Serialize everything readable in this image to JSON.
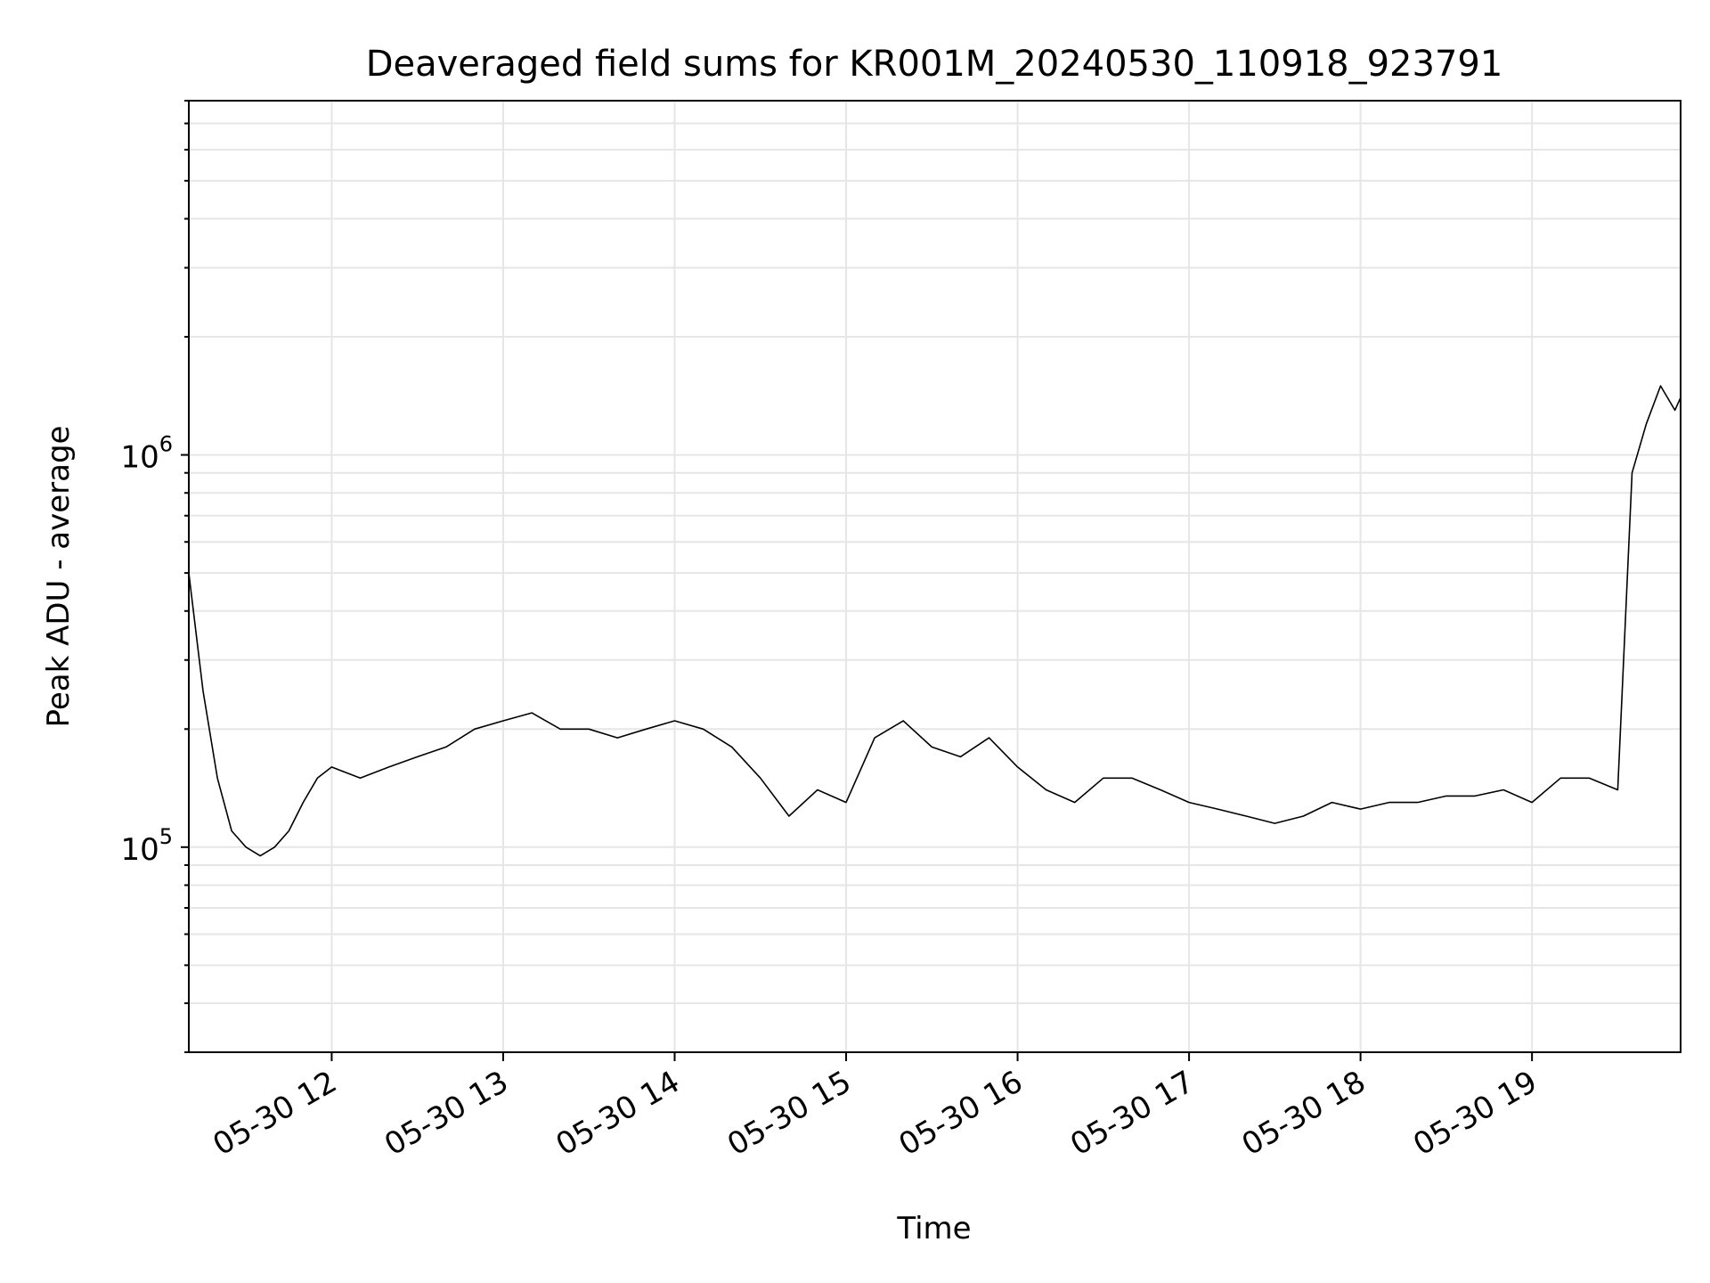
{
  "chart_data": {
    "type": "line",
    "title": "Deaveraged field sums for KR001M_20240530_110918_923791",
    "xlabel": "Time",
    "ylabel": "Peak ADU - average",
    "x_range": [
      "2024-05-30T11:10:00",
      "2024-05-30T19:52:00"
    ],
    "y_range": [
      30000,
      8000000
    ],
    "y_scale": "log",
    "grid": true,
    "x_ticks": [
      {
        "label": "05-30 12",
        "time": "2024-05-30T12:00:00"
      },
      {
        "label": "05-30 13",
        "time": "2024-05-30T13:00:00"
      },
      {
        "label": "05-30 14",
        "time": "2024-05-30T14:00:00"
      },
      {
        "label": "05-30 15",
        "time": "2024-05-30T15:00:00"
      },
      {
        "label": "05-30 16",
        "time": "2024-05-30T16:00:00"
      },
      {
        "label": "05-30 17",
        "time": "2024-05-30T17:00:00"
      },
      {
        "label": "05-30 18",
        "time": "2024-05-30T18:00:00"
      },
      {
        "label": "05-30 19",
        "time": "2024-05-30T19:00:00"
      }
    ],
    "y_ticks": [
      {
        "base": "10",
        "exp": "5",
        "value": 100000
      },
      {
        "base": "10",
        "exp": "6",
        "value": 1000000
      }
    ],
    "series": [
      {
        "color": "#000000",
        "x": [
          "2024-05-30T11:10:00",
          "2024-05-30T11:15:00",
          "2024-05-30T11:20:00",
          "2024-05-30T11:25:00",
          "2024-05-30T11:30:00",
          "2024-05-30T11:35:00",
          "2024-05-30T11:40:00",
          "2024-05-30T11:45:00",
          "2024-05-30T11:50:00",
          "2024-05-30T11:55:00",
          "2024-05-30T12:00:00",
          "2024-05-30T12:10:00",
          "2024-05-30T12:20:00",
          "2024-05-30T12:30:00",
          "2024-05-30T12:40:00",
          "2024-05-30T12:50:00",
          "2024-05-30T13:00:00",
          "2024-05-30T13:10:00",
          "2024-05-30T13:20:00",
          "2024-05-30T13:30:00",
          "2024-05-30T13:40:00",
          "2024-05-30T13:50:00",
          "2024-05-30T14:00:00",
          "2024-05-30T14:10:00",
          "2024-05-30T14:20:00",
          "2024-05-30T14:30:00",
          "2024-05-30T14:40:00",
          "2024-05-30T14:50:00",
          "2024-05-30T15:00:00",
          "2024-05-30T15:10:00",
          "2024-05-30T15:20:00",
          "2024-05-30T15:30:00",
          "2024-05-30T15:40:00",
          "2024-05-30T15:50:00",
          "2024-05-30T16:00:00",
          "2024-05-30T16:10:00",
          "2024-05-30T16:20:00",
          "2024-05-30T16:30:00",
          "2024-05-30T16:40:00",
          "2024-05-30T16:50:00",
          "2024-05-30T17:00:00",
          "2024-05-30T17:10:00",
          "2024-05-30T17:20:00",
          "2024-05-30T17:30:00",
          "2024-05-30T17:40:00",
          "2024-05-30T17:50:00",
          "2024-05-30T18:00:00",
          "2024-05-30T18:10:00",
          "2024-05-30T18:20:00",
          "2024-05-30T18:30:00",
          "2024-05-30T18:40:00",
          "2024-05-30T18:50:00",
          "2024-05-30T19:00:00",
          "2024-05-30T19:10:00",
          "2024-05-30T19:20:00",
          "2024-05-30T19:30:00",
          "2024-05-30T19:35:00",
          "2024-05-30T19:40:00",
          "2024-05-30T19:45:00",
          "2024-05-30T19:50:00",
          "2024-05-30T19:52:00"
        ],
        "y": [
          500000,
          250000,
          150000,
          110000,
          100000,
          95000,
          100000,
          110000,
          130000,
          150000,
          160000,
          150000,
          160000,
          170000,
          180000,
          200000,
          210000,
          220000,
          200000,
          200000,
          190000,
          200000,
          210000,
          200000,
          180000,
          150000,
          120000,
          140000,
          130000,
          190000,
          210000,
          180000,
          170000,
          190000,
          160000,
          140000,
          130000,
          150000,
          150000,
          140000,
          130000,
          125000,
          120000,
          115000,
          120000,
          130000,
          125000,
          130000,
          130000,
          135000,
          135000,
          140000,
          130000,
          150000,
          150000,
          140000,
          900000,
          1200000,
          1500000,
          1300000,
          1400000
        ]
      }
    ]
  }
}
